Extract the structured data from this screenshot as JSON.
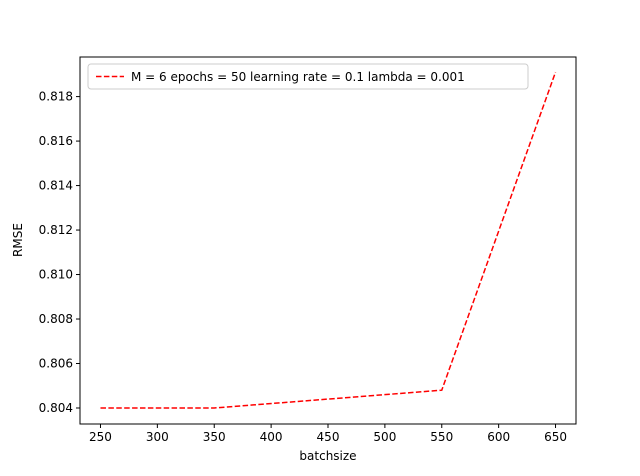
{
  "chart_data": {
    "type": "line",
    "title": "",
    "xlabel": "batchsize",
    "ylabel": "RMSE",
    "xlim": [
      232,
      668
    ],
    "ylim": [
      0.80328,
      0.81978
    ],
    "xticks": [
      250,
      300,
      350,
      400,
      450,
      500,
      550,
      600,
      650
    ],
    "yticks": [
      0.804,
      0.806,
      0.808,
      0.81,
      0.812,
      0.814,
      0.816,
      0.818
    ],
    "grid": false,
    "legend_position": "top-left",
    "series": [
      {
        "name": "M = 6 epochs = 50 learning rate = 0.1 lambda = 0.001",
        "color": "#ff0000",
        "line_style": "dashed",
        "x": [
          250,
          350,
          550,
          650
        ],
        "y": [
          0.804,
          0.804,
          0.8048,
          0.8191
        ]
      }
    ]
  }
}
